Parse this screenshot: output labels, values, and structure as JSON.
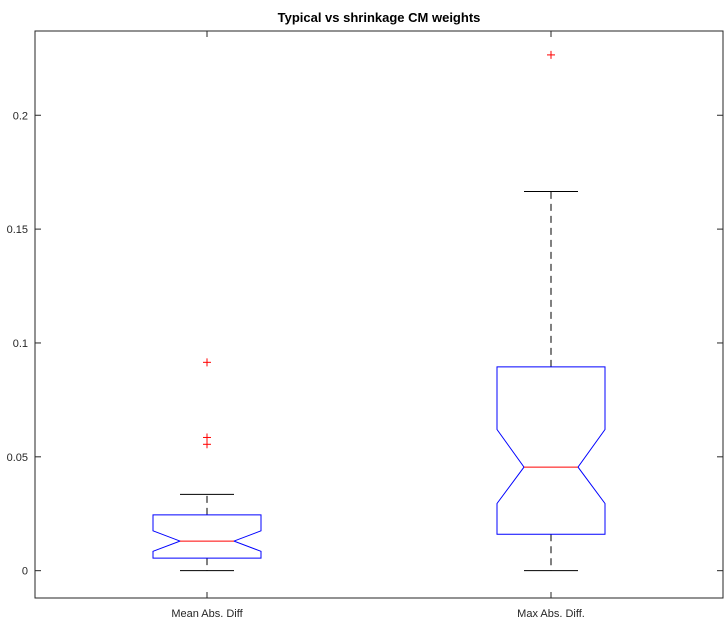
{
  "chart_data": {
    "type": "boxplot",
    "title": "Typical vs shrinkage CM weights",
    "xlabel": "",
    "ylabel": "",
    "categories": [
      "Mean Abs. Diff",
      "Max Abs. Diff."
    ],
    "ylim": [
      -0.012,
      0.237
    ],
    "yticks": [
      0,
      0.05,
      0.1,
      0.15,
      0.2
    ],
    "ytick_labels": [
      "0",
      "0.05",
      "0.1",
      "0.15",
      "0.2"
    ],
    "notched": true,
    "grid": false,
    "boxes": [
      {
        "category": "Mean Abs. Diff",
        "whisker_low": 0.0,
        "q1": 0.0055,
        "notch_low": 0.0085,
        "median": 0.013,
        "notch_high": 0.0175,
        "q3": 0.0245,
        "whisker_high": 0.0335,
        "outliers": [
          0.0915,
          0.0585,
          0.0555
        ]
      },
      {
        "category": "Max Abs. Diff.",
        "whisker_low": 0.0,
        "q1": 0.016,
        "notch_low": 0.0295,
        "median": 0.0455,
        "notch_high": 0.062,
        "q3": 0.0895,
        "whisker_high": 0.1665,
        "outliers": [
          0.2265
        ]
      }
    ],
    "colors": {
      "box": "#0000ff",
      "median": "#ff0000",
      "whisker": "#000000",
      "outlier": "#ff0000",
      "axes": "#262626"
    }
  }
}
